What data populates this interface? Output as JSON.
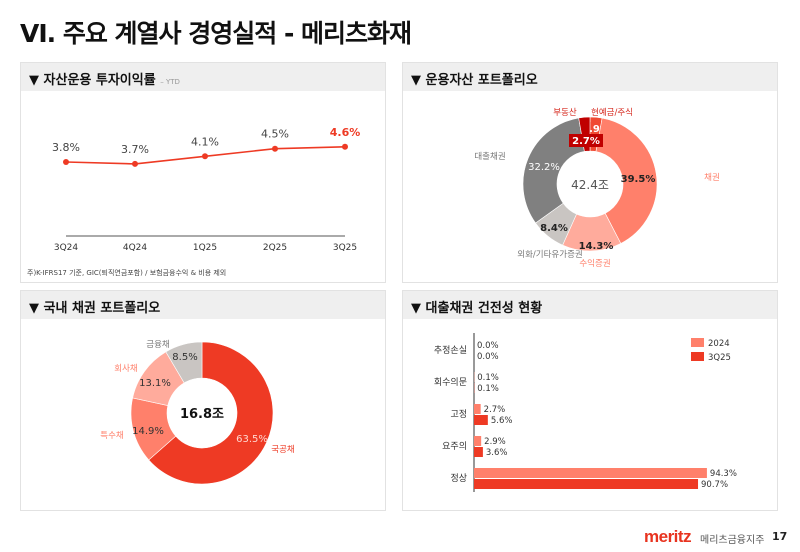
{
  "title": "VI. 주요 계열사 경영실적 - 메리츠화재",
  "panels": {
    "yield": {
      "title": "▼ 자산운용 투자이익률",
      "suffix": "– YTD",
      "note": "주)K-IFRS17 기준, GIC(퇴직연금포함) / 보험금융수익 & 비용 제외"
    },
    "portfolio": {
      "title": "▼ 운용자산 포트폴리오"
    },
    "bond": {
      "title": "▼ 국내 채권 포트폴리오"
    },
    "loan": {
      "title": "▼ 대출채권 건전성 현황"
    }
  },
  "chart_data": [
    {
      "type": "line",
      "title": "자산운용 투자이익률",
      "categories": [
        "3Q24",
        "4Q24",
        "1Q25",
        "2Q25",
        "3Q25"
      ],
      "values": [
        3.8,
        3.7,
        4.1,
        4.5,
        4.6
      ],
      "labels": [
        "3.8%",
        "3.7%",
        "4.1%",
        "4.5%",
        "4.6%"
      ],
      "color": "#ee3a24"
    },
    {
      "type": "pie",
      "title": "운용자산 포트폴리오",
      "center_label": "42.4조",
      "slices": [
        {
          "name": "현예금/주식",
          "value": 2.9,
          "label": "2.9%",
          "color": "#f04a33"
        },
        {
          "name": "채권",
          "value": 39.5,
          "label": "39.5%",
          "color": "#ff806b"
        },
        {
          "name": "수익증권",
          "value": 14.3,
          "label": "14.3%",
          "color": "#ffab9c"
        },
        {
          "name": "외화/기타유가증권",
          "value": 8.4,
          "label": "8.4%",
          "color": "#c9c5c2"
        },
        {
          "name": "대출채권",
          "value": 32.2,
          "label": "32.2%",
          "color": "#808080"
        },
        {
          "name": "부동산",
          "value": 2.7,
          "label": "2.7%",
          "color": "#c00000"
        }
      ]
    },
    {
      "type": "pie",
      "title": "국내 채권 포트폴리오",
      "center_label": "16.8조",
      "slices": [
        {
          "name": "국공채",
          "value": 63.5,
          "label": "63.5%",
          "color": "#ee3a24"
        },
        {
          "name": "특수채",
          "value": 14.9,
          "label": "14.9%",
          "color": "#ff806b"
        },
        {
          "name": "회사채",
          "value": 13.1,
          "label": "13.1%",
          "color": "#ffab9c"
        },
        {
          "name": "금융채",
          "value": 8.5,
          "label": "8.5%",
          "color": "#c9c5c2"
        }
      ]
    },
    {
      "type": "bar",
      "orientation": "horizontal",
      "title": "대출채권 건전성 현황",
      "categories": [
        "추정손실",
        "회수의문",
        "고정",
        "요주의",
        "정상"
      ],
      "series": [
        {
          "name": "2024",
          "color": "#ff806b",
          "values": [
            0.0,
            0.1,
            2.7,
            2.9,
            94.3
          ],
          "labels": [
            "0.0%",
            "0.1%",
            "2.7%",
            "2.9%",
            "94.3%"
          ]
        },
        {
          "name": "3Q25",
          "color": "#ee3a24",
          "values": [
            0.0,
            0.1,
            5.6,
            3.6,
            90.7
          ],
          "labels": [
            "0.0%",
            "0.1%",
            "5.6%",
            "3.6%",
            "90.7%"
          ]
        }
      ],
      "legend": "top-right"
    }
  ],
  "footer": {
    "logo": "meritz",
    "company": "메리츠금융지주",
    "page": "17"
  }
}
